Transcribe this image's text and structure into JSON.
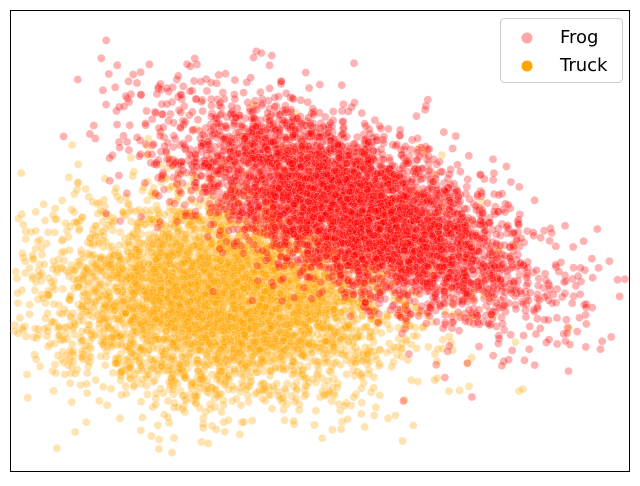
{
  "chart_data": {
    "type": "scatter",
    "title": "",
    "xlabel": "",
    "ylabel": "",
    "xticks": false,
    "yticks": false,
    "grid": false,
    "legend": {
      "placement": "top-right"
    },
    "xlim": [
      0,
      100
    ],
    "ylim": [
      0,
      100
    ],
    "series": [
      {
        "name": "Frog",
        "color": "#ff0000",
        "marker_alpha": 0.3,
        "legend_order": 1,
        "draw_order": 2,
        "n_points": 5000,
        "distribution": {
          "kind": "gaussian",
          "center": [
            55,
            57
          ],
          "sd": [
            14,
            11
          ],
          "correlation": -0.65
        }
      },
      {
        "name": "Truck",
        "color": "#ffa500",
        "marker_alpha": 0.3,
        "legend_order": 2,
        "draw_order": 1,
        "n_points": 5000,
        "distribution": {
          "kind": "gaussian",
          "center": [
            35,
            38
          ],
          "sd": [
            14,
            11
          ],
          "correlation": 0.0
        }
      }
    ]
  }
}
